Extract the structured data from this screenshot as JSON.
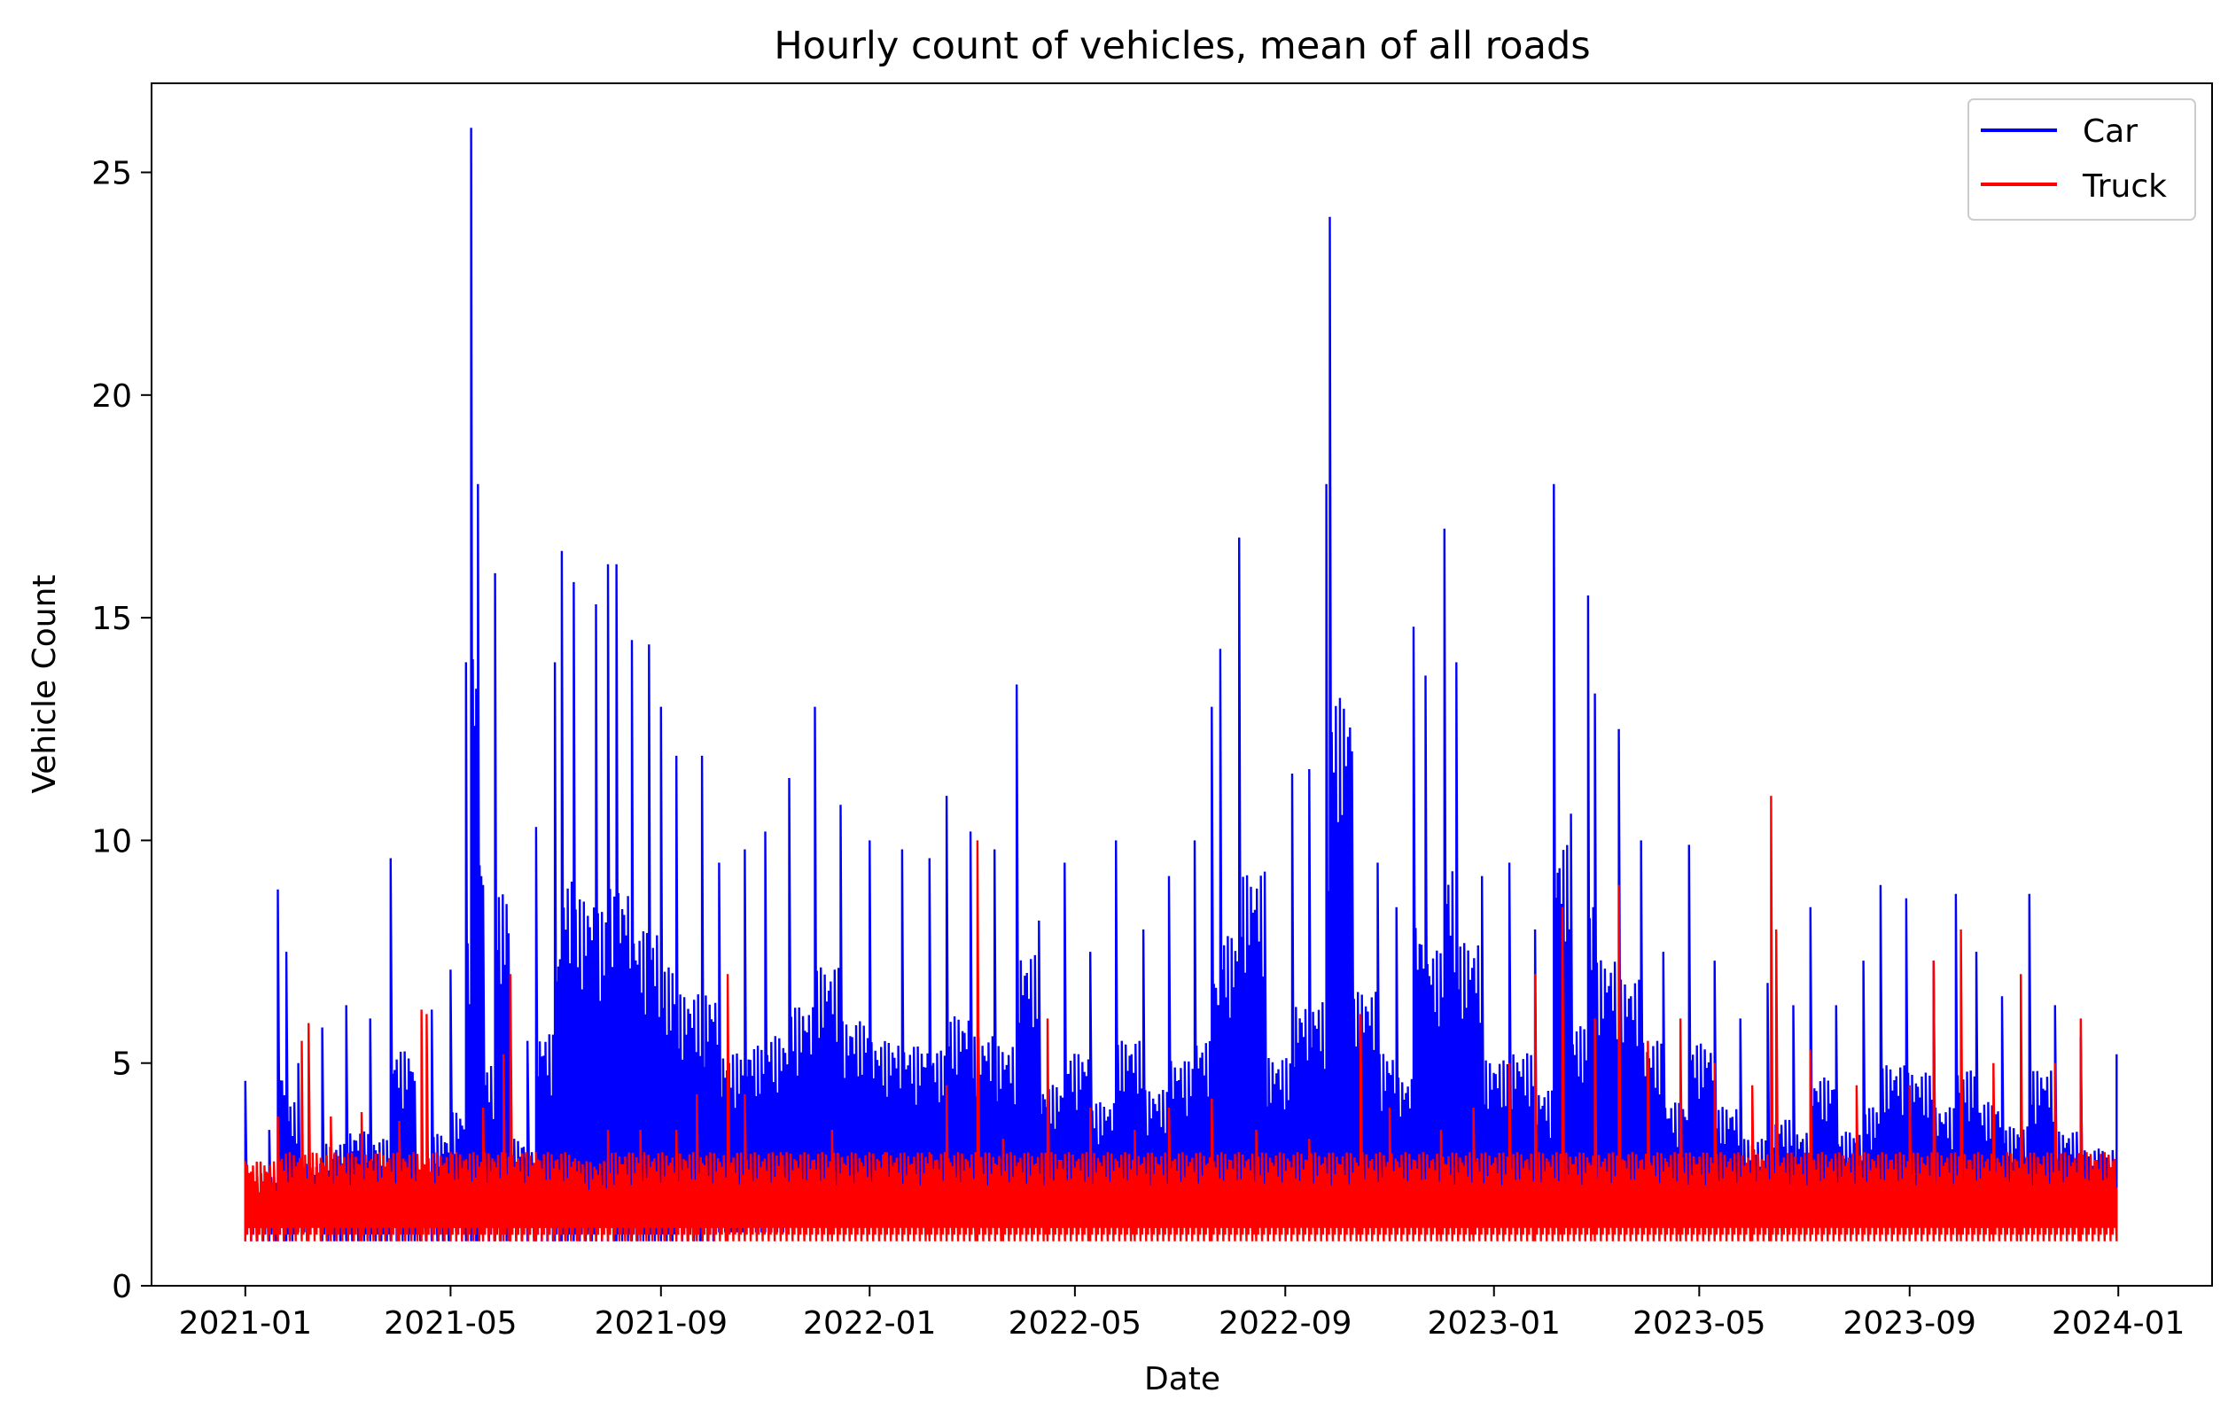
{
  "chart_data": {
    "type": "line",
    "title": "Hourly count of vehicles, mean of all roads",
    "xlabel": "Date",
    "ylabel": "Vehicle Count",
    "xlim": [
      "2021-01-01",
      "2024-01-01"
    ],
    "ylim": [
      0,
      27
    ],
    "x_ticks": [
      "2021-01",
      "2021-05",
      "2021-09",
      "2022-01",
      "2022-05",
      "2022-09",
      "2023-01",
      "2023-05",
      "2023-09",
      "2024-01"
    ],
    "y_ticks": [
      0,
      5,
      10,
      15,
      20,
      25
    ],
    "grid": false,
    "legend": {
      "position": "top-right"
    },
    "series": [
      {
        "name": "Car",
        "color": "#0000ff",
        "points": [
          [
            "2021-01-01",
            1.0,
            4.6
          ],
          [
            "2021-01-15",
            1.0,
            3.5
          ],
          [
            "2021-01-20",
            1.0,
            8.9
          ],
          [
            "2021-01-25",
            1.0,
            7.5
          ],
          [
            "2021-02-01",
            1.2,
            5.0
          ],
          [
            "2021-02-15",
            1.0,
            5.8
          ],
          [
            "2021-03-01",
            1.0,
            6.3
          ],
          [
            "2021-03-15",
            1.0,
            6.0
          ],
          [
            "2021-03-27",
            1.0,
            9.6
          ],
          [
            "2021-04-10",
            1.0,
            4.6
          ],
          [
            "2021-04-20",
            1.0,
            6.2
          ],
          [
            "2021-05-01",
            1.0,
            7.1
          ],
          [
            "2021-05-10",
            1.0,
            14.0
          ],
          [
            "2021-05-13",
            1.0,
            26.0
          ],
          [
            "2021-05-17",
            1.0,
            18.0
          ],
          [
            "2021-05-20",
            1.0,
            9.0
          ],
          [
            "2021-05-27",
            1.0,
            16.0
          ],
          [
            "2021-06-05",
            1.0,
            6.0
          ],
          [
            "2021-06-15",
            1.0,
            5.5
          ],
          [
            "2021-06-20",
            1.0,
            10.3
          ],
          [
            "2021-07-01",
            1.0,
            14.0
          ],
          [
            "2021-07-05",
            1.0,
            16.5
          ],
          [
            "2021-07-12",
            1.0,
            15.8
          ],
          [
            "2021-07-25",
            1.0,
            15.3
          ],
          [
            "2021-08-01",
            1.0,
            16.2
          ],
          [
            "2021-08-06",
            1.0,
            16.2
          ],
          [
            "2021-08-15",
            1.0,
            14.5
          ],
          [
            "2021-08-25",
            1.0,
            14.4
          ],
          [
            "2021-09-01",
            1.0,
            13.0
          ],
          [
            "2021-09-10",
            1.0,
            11.9
          ],
          [
            "2021-09-25",
            1.0,
            11.9
          ],
          [
            "2021-10-05",
            1.2,
            9.5
          ],
          [
            "2021-10-20",
            1.2,
            9.8
          ],
          [
            "2021-11-01",
            1.2,
            10.2
          ],
          [
            "2021-11-15",
            1.4,
            11.4
          ],
          [
            "2021-11-30",
            1.3,
            13.0
          ],
          [
            "2021-12-15",
            1.3,
            10.8
          ],
          [
            "2022-01-01",
            1.3,
            10.0
          ],
          [
            "2022-01-20",
            1.3,
            9.8
          ],
          [
            "2022-02-05",
            1.3,
            9.6
          ],
          [
            "2022-02-15",
            1.3,
            11.0
          ],
          [
            "2022-03-01",
            1.3,
            10.2
          ],
          [
            "2022-03-15",
            1.3,
            9.8
          ],
          [
            "2022-03-28",
            1.3,
            13.5
          ],
          [
            "2022-04-10",
            1.3,
            8.2
          ],
          [
            "2022-04-25",
            1.3,
            9.5
          ],
          [
            "2022-05-10",
            1.3,
            7.5
          ],
          [
            "2022-05-25",
            1.3,
            10.0
          ],
          [
            "2022-06-10",
            1.3,
            8.0
          ],
          [
            "2022-06-25",
            1.3,
            9.2
          ],
          [
            "2022-07-10",
            1.3,
            10.0
          ],
          [
            "2022-07-20",
            1.3,
            13.0
          ],
          [
            "2022-07-25",
            1.3,
            14.3
          ],
          [
            "2022-08-05",
            1.3,
            16.8
          ],
          [
            "2022-08-20",
            1.3,
            9.3
          ],
          [
            "2022-09-05",
            1.3,
            11.5
          ],
          [
            "2022-09-15",
            1.3,
            11.6
          ],
          [
            "2022-09-25",
            1.3,
            18.0
          ],
          [
            "2022-09-27",
            1.3,
            24.0
          ],
          [
            "2022-10-10",
            1.3,
            12.0
          ],
          [
            "2022-10-25",
            1.3,
            9.5
          ],
          [
            "2022-11-05",
            1.3,
            8.5
          ],
          [
            "2022-11-15",
            1.3,
            14.8
          ],
          [
            "2022-11-22",
            1.3,
            13.7
          ],
          [
            "2022-12-03",
            1.3,
            17.0
          ],
          [
            "2022-12-10",
            1.3,
            14.0
          ],
          [
            "2022-12-25",
            1.3,
            9.2
          ],
          [
            "2023-01-10",
            1.3,
            9.5
          ],
          [
            "2023-01-25",
            1.3,
            8.0
          ],
          [
            "2023-02-05",
            1.3,
            18.0
          ],
          [
            "2023-02-15",
            1.3,
            10.6
          ],
          [
            "2023-02-25",
            1.3,
            15.5
          ],
          [
            "2023-03-01",
            1.3,
            13.3
          ],
          [
            "2023-03-15",
            1.3,
            12.5
          ],
          [
            "2023-03-28",
            1.3,
            10.0
          ],
          [
            "2023-04-10",
            1.3,
            7.5
          ],
          [
            "2023-04-25",
            1.3,
            9.9
          ],
          [
            "2023-05-10",
            1.3,
            7.3
          ],
          [
            "2023-05-25",
            1.3,
            6.0
          ],
          [
            "2023-06-10",
            1.3,
            6.8
          ],
          [
            "2023-06-25",
            1.3,
            6.3
          ],
          [
            "2023-07-05",
            1.3,
            8.5
          ],
          [
            "2023-07-20",
            1.3,
            6.3
          ],
          [
            "2023-08-05",
            1.3,
            7.3
          ],
          [
            "2023-08-15",
            1.3,
            9.0
          ],
          [
            "2023-08-30",
            1.3,
            8.7
          ],
          [
            "2023-09-15",
            1.3,
            7.3
          ],
          [
            "2023-09-28",
            1.3,
            8.8
          ],
          [
            "2023-10-10",
            1.3,
            7.5
          ],
          [
            "2023-10-25",
            1.3,
            6.5
          ],
          [
            "2023-11-10",
            1.3,
            8.8
          ],
          [
            "2023-11-25",
            1.3,
            6.3
          ],
          [
            "2023-12-10",
            1.3,
            5.6
          ],
          [
            "2023-12-31",
            1.3,
            5.2
          ]
        ]
      },
      {
        "name": "Truck",
        "color": "#ff0000",
        "points": [
          [
            "2021-01-01",
            1.0,
            2.8
          ],
          [
            "2021-01-20",
            1.0,
            3.8
          ],
          [
            "2021-02-03",
            1.0,
            5.5
          ],
          [
            "2021-02-07",
            1.0,
            5.9
          ],
          [
            "2021-02-20",
            1.0,
            3.8
          ],
          [
            "2021-03-10",
            1.0,
            3.9
          ],
          [
            "2021-04-01",
            1.0,
            3.7
          ],
          [
            "2021-04-14",
            1.0,
            6.2
          ],
          [
            "2021-04-17",
            1.0,
            6.1
          ],
          [
            "2021-05-01",
            1.0,
            3.0
          ],
          [
            "2021-05-20",
            1.0,
            4.0
          ],
          [
            "2021-06-01",
            1.0,
            5.2
          ],
          [
            "2021-06-05",
            1.0,
            7.0
          ],
          [
            "2021-06-20",
            1.0,
            3.0
          ],
          [
            "2021-07-15",
            1.0,
            2.8
          ],
          [
            "2021-08-01",
            1.0,
            3.5
          ],
          [
            "2021-08-20",
            1.0,
            3.5
          ],
          [
            "2021-09-10",
            1.0,
            3.5
          ],
          [
            "2021-09-22",
            1.0,
            4.3
          ],
          [
            "2021-10-10",
            1.0,
            7.0
          ],
          [
            "2021-10-20",
            1.0,
            4.3
          ],
          [
            "2021-11-10",
            1.0,
            3.0
          ],
          [
            "2021-12-10",
            1.0,
            3.5
          ],
          [
            "2022-01-10",
            1.0,
            3.0
          ],
          [
            "2022-02-05",
            1.0,
            3.0
          ],
          [
            "2022-02-15",
            1.0,
            4.5
          ],
          [
            "2022-03-05",
            1.0,
            10.0
          ],
          [
            "2022-03-20",
            1.0,
            3.3
          ],
          [
            "2022-04-15",
            1.0,
            6.0
          ],
          [
            "2022-05-10",
            1.0,
            4.0
          ],
          [
            "2022-06-05",
            1.0,
            3.5
          ],
          [
            "2022-06-25",
            1.0,
            4.0
          ],
          [
            "2022-07-20",
            1.0,
            4.2
          ],
          [
            "2022-08-15",
            1.0,
            3.5
          ],
          [
            "2022-09-15",
            1.0,
            3.3
          ],
          [
            "2022-10-15",
            1.0,
            6.1
          ],
          [
            "2022-11-01",
            1.0,
            4.0
          ],
          [
            "2022-12-01",
            1.0,
            3.5
          ],
          [
            "2022-12-20",
            1.0,
            4.0
          ],
          [
            "2023-01-10",
            1.0,
            5.0
          ],
          [
            "2023-01-25",
            1.0,
            7.0
          ],
          [
            "2023-02-10",
            1.0,
            8.5
          ],
          [
            "2023-03-01",
            1.0,
            6.0
          ],
          [
            "2023-03-15",
            1.0,
            9.0
          ],
          [
            "2023-04-01",
            1.0,
            5.5
          ],
          [
            "2023-04-20",
            1.0,
            6.0
          ],
          [
            "2023-05-10",
            1.0,
            5.0
          ],
          [
            "2023-06-01",
            1.0,
            4.5
          ],
          [
            "2023-06-12",
            1.0,
            11.0
          ],
          [
            "2023-06-15",
            1.0,
            8.0
          ],
          [
            "2023-07-05",
            1.0,
            5.3
          ],
          [
            "2023-08-01",
            1.0,
            4.5
          ],
          [
            "2023-09-01",
            1.0,
            4.5
          ],
          [
            "2023-09-15",
            1.0,
            7.3
          ],
          [
            "2023-10-01",
            1.0,
            8.0
          ],
          [
            "2023-10-20",
            1.0,
            5.0
          ],
          [
            "2023-11-05",
            1.0,
            7.0
          ],
          [
            "2023-11-25",
            1.0,
            5.0
          ],
          [
            "2023-12-10",
            1.0,
            6.0
          ],
          [
            "2023-12-31",
            1.0,
            2.2
          ]
        ]
      }
    ]
  }
}
